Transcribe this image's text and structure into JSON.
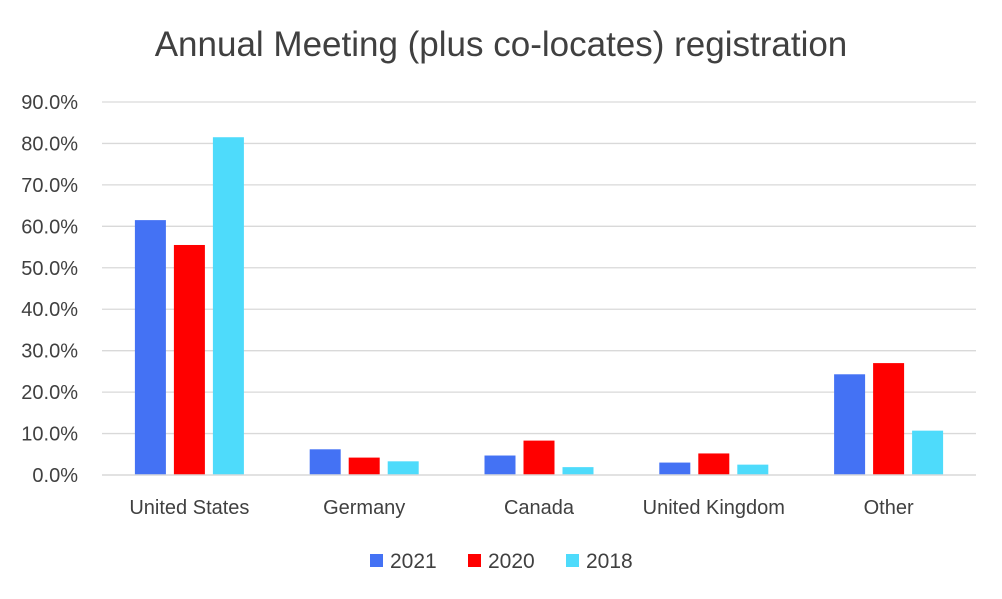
{
  "chart_data": {
    "type": "bar",
    "title": "Annual Meeting (plus co-locates) registration",
    "xlabel": "",
    "ylabel": "",
    "categories": [
      "United States",
      "Germany",
      "Canada",
      "United Kingdom",
      "Other"
    ],
    "series": [
      {
        "name": "2021",
        "color": "#4472F4",
        "values": [
          61.5,
          6.2,
          4.7,
          3.0,
          24.3
        ]
      },
      {
        "name": "2020",
        "color": "#FF0000",
        "values": [
          55.5,
          4.2,
          8.3,
          5.2,
          27.0
        ]
      },
      {
        "name": "2018",
        "color": "#4EDBFB",
        "values": [
          81.5,
          3.3,
          1.9,
          2.5,
          10.7
        ]
      }
    ],
    "ylim": [
      0,
      90
    ],
    "yticks": [
      0,
      10,
      20,
      30,
      40,
      50,
      60,
      70,
      80,
      90
    ],
    "ytick_labels": [
      "0.0%",
      "10.0%",
      "20.0%",
      "30.0%",
      "40.0%",
      "50.0%",
      "60.0%",
      "70.0%",
      "80.0%",
      "90.0%"
    ],
    "grid": true,
    "gridline_color": "#D9D9D9",
    "text_color": "#404040",
    "legend_position": "bottom-center"
  }
}
